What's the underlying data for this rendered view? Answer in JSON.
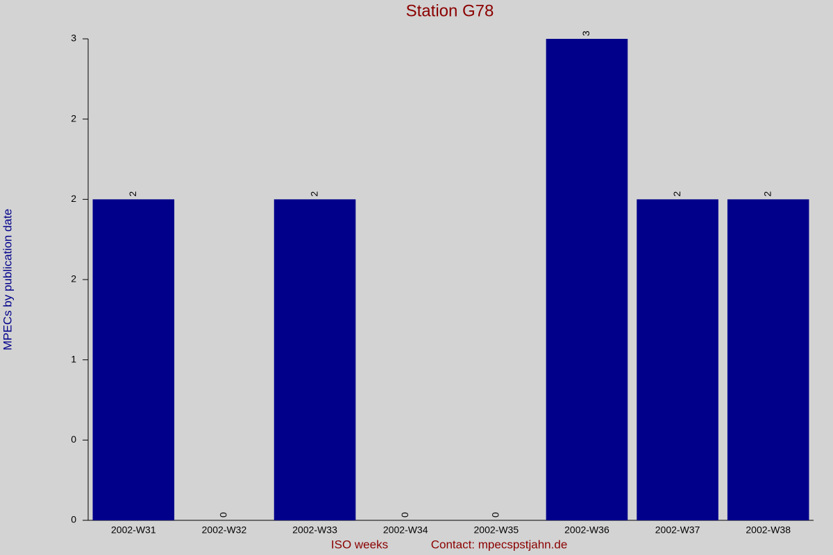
{
  "chart_data": {
    "type": "bar",
    "title": "Station G78",
    "x_label": "ISO weeks",
    "contact": "Contact: mpecspstjahn.de",
    "y_label": "MPECs by publication date",
    "categories": [
      "2002-W31",
      "2002-W32",
      "2002-W33",
      "2002-W34",
      "2002-W35",
      "2002-W36",
      "2002-W37",
      "2002-W38"
    ],
    "values": [
      2,
      0,
      2,
      0,
      0,
      3,
      2,
      2
    ],
    "color": "#00008b",
    "ylim": [
      0,
      3
    ],
    "yticks": [
      0,
      {
        "value": 0.5,
        "label": "0"
      },
      1,
      {
        "value": 1.5,
        "label": "2"
      },
      2,
      {
        "value": 2.5,
        "label": "2"
      },
      3
    ],
    "grid": false
  }
}
